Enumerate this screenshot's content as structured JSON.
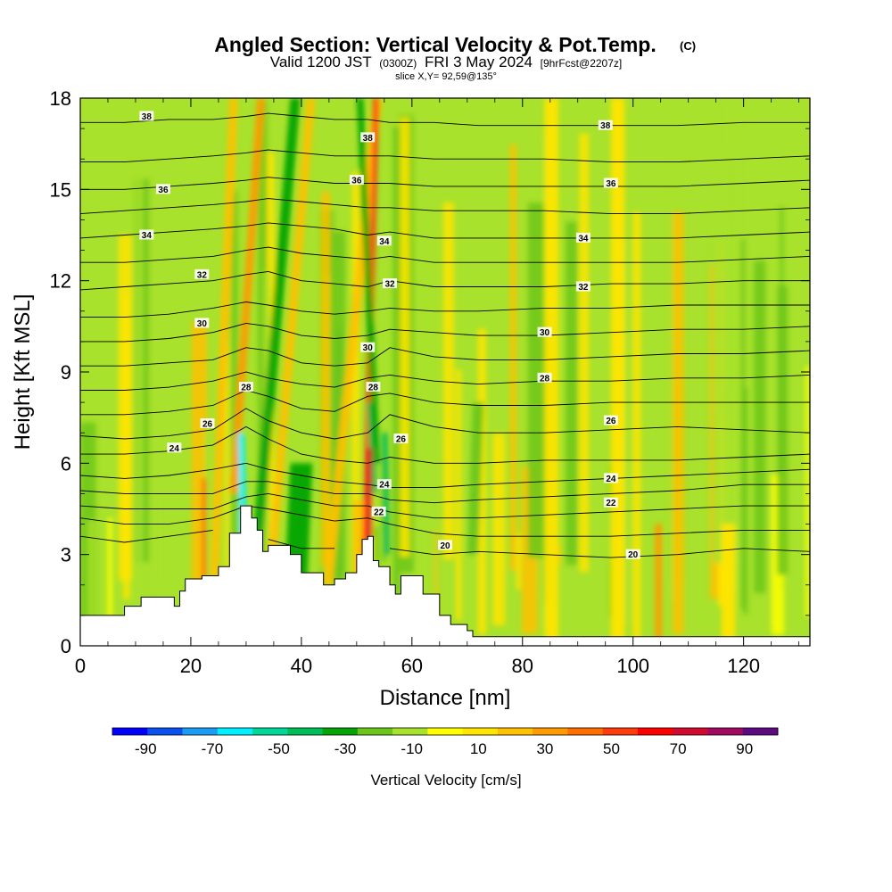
{
  "chart_data": {
    "type": "heatmap",
    "title": "Angled Section: Vertical Velocity & Pot.Temp.",
    "title_mark": "(C)",
    "subtitle": {
      "valid": "Valid 1200 JST",
      "z": "(0300Z)",
      "date": "FRI 3 May 2024",
      "fcst": "[9hrFcst@2207z]"
    },
    "slice_label": "slice X,Y= 92,59@135°",
    "xlabel": "Distance [nm]",
    "ylabel": "Height [Kft MSL]",
    "xlim": [
      0,
      132
    ],
    "ylim": [
      0,
      18
    ],
    "xticks": [
      0,
      20,
      40,
      60,
      80,
      100,
      120
    ],
    "yticks": [
      0,
      3,
      6,
      9,
      12,
      15,
      18
    ],
    "colorbar": {
      "label": "Vertical Velocity [cm/s]",
      "tick_labels": [
        "-90",
        "-70",
        "-50",
        "-30",
        "-10",
        "10",
        "30",
        "50",
        "70",
        "90"
      ],
      "range": [
        -100,
        100
      ],
      "colors": [
        "#0000ff",
        "#0a4ff0",
        "#1a9cf5",
        "#00f0ff",
        "#00d89a",
        "#00be55",
        "#06a306",
        "#6cc61a",
        "#a8e22c",
        "#ffff00",
        "#ffe500",
        "#ffc100",
        "#ff9a00",
        "#ff6e00",
        "#ff3b0a",
        "#ff0000",
        "#d10a30",
        "#a00a60",
        "#5c0a80"
      ]
    },
    "terrain": [
      [
        0,
        1
      ],
      [
        6,
        1
      ],
      [
        8,
        1.3
      ],
      [
        11,
        1.6
      ],
      [
        15,
        1.6
      ],
      [
        17,
        1.3
      ],
      [
        18,
        1.8
      ],
      [
        19,
        2.2
      ],
      [
        22,
        2.3
      ],
      [
        25,
        2.6
      ],
      [
        27,
        3.7
      ],
      [
        29,
        4.6
      ],
      [
        31,
        4.2
      ],
      [
        32,
        3.8
      ],
      [
        33,
        3.1
      ],
      [
        34,
        3.3
      ],
      [
        36,
        3.3
      ],
      [
        38,
        3.0
      ],
      [
        40,
        2.4
      ],
      [
        42,
        2.4
      ],
      [
        44,
        2.0
      ],
      [
        46,
        2.2
      ],
      [
        48,
        2.4
      ],
      [
        50,
        3.0
      ],
      [
        51,
        3.5
      ],
      [
        52,
        3.6
      ],
      [
        53,
        2.8
      ],
      [
        54,
        2.6
      ],
      [
        56,
        2.0
      ],
      [
        57,
        1.7
      ],
      [
        58,
        2.3
      ],
      [
        60,
        2.3
      ],
      [
        62,
        1.7
      ],
      [
        65,
        1.0
      ],
      [
        67,
        0.7
      ],
      [
        70,
        0.5
      ],
      [
        71,
        0.3
      ],
      [
        132,
        0.3
      ]
    ],
    "theta_contours": [
      {
        "label": "20",
        "y": [
          3.6,
          3.4,
          3.6,
          3.8,
          3.6,
          3.5,
          3.2,
          3.2,
          3.5,
          3.2,
          3.0,
          3.1,
          3.0,
          2.9,
          3.0,
          3.2,
          3.1
        ],
        "labels_at": [
          [
            66,
            3.3
          ],
          [
            100,
            3.0
          ]
        ]
      },
      {
        "label": "",
        "y": [
          4.2,
          4.0,
          4.0,
          4.2,
          4.6,
          4.5,
          4.3,
          4.1,
          4.2,
          4.0,
          3.7,
          3.6,
          3.6,
          3.6,
          3.7,
          3.8,
          3.8
        ]
      },
      {
        "label": "22",
        "y": [
          4.6,
          4.5,
          4.5,
          4.5,
          4.9,
          5.0,
          4.8,
          4.6,
          4.6,
          4.4,
          4.2,
          4.2,
          4.3,
          4.4,
          4.5,
          4.6,
          4.6
        ],
        "labels_at": [
          [
            54,
            4.4
          ],
          [
            96,
            4.7
          ]
        ]
      },
      {
        "label": "",
        "y": [
          5.1,
          5.0,
          5.0,
          5.0,
          5.4,
          5.4,
          5.2,
          5.0,
          5.0,
          4.8,
          4.7,
          4.8,
          4.9,
          5.0,
          5.1,
          5.3,
          5.3
        ]
      },
      {
        "label": "24",
        "y": [
          5.6,
          5.5,
          5.6,
          5.8,
          6.0,
          5.8,
          5.6,
          5.4,
          5.3,
          5.2,
          5.2,
          5.3,
          5.4,
          5.5,
          5.6,
          5.7,
          5.8
        ],
        "labels_at": [
          [
            55,
            5.3
          ],
          [
            96,
            5.5
          ],
          [
            17,
            6.5
          ]
        ]
      },
      {
        "label": "",
        "y": [
          6.3,
          6.3,
          6.4,
          6.6,
          7.2,
          6.8,
          6.3,
          6.1,
          6.0,
          6.2,
          6.0,
          6.0,
          6.1,
          6.1,
          6.1,
          6.2,
          6.3
        ]
      },
      {
        "label": "26",
        "y": [
          6.9,
          6.8,
          6.9,
          7.1,
          7.8,
          7.4,
          7.0,
          6.8,
          7.0,
          7.6,
          7.2,
          7.0,
          7.0,
          7.1,
          7.2,
          7.1,
          7.0
        ],
        "labels_at": [
          [
            23,
            7.3
          ],
          [
            58,
            6.8
          ],
          [
            96,
            7.4
          ]
        ]
      },
      {
        "label": "",
        "y": [
          7.6,
          7.6,
          7.7,
          7.9,
          8.4,
          8.2,
          7.8,
          7.7,
          8.2,
          8.3,
          8.0,
          7.9,
          7.9,
          8.0,
          8.0,
          8.0,
          8.0
        ]
      },
      {
        "label": "28",
        "y": [
          8.4,
          8.4,
          8.5,
          8.7,
          9.0,
          8.8,
          8.6,
          8.5,
          8.8,
          8.9,
          8.7,
          8.6,
          8.7,
          8.7,
          8.8,
          8.8,
          8.9
        ],
        "labels_at": [
          [
            30,
            8.5
          ],
          [
            53,
            8.5
          ],
          [
            84,
            8.8
          ]
        ]
      },
      {
        "label": "",
        "y": [
          9.2,
          9.2,
          9.3,
          9.4,
          9.8,
          9.7,
          9.3,
          9.2,
          9.3,
          9.8,
          9.5,
          9.4,
          9.4,
          9.5,
          9.6,
          9.6,
          9.7
        ]
      },
      {
        "label": "30",
        "y": [
          10.0,
          10.0,
          10.1,
          10.3,
          10.6,
          10.5,
          10.2,
          10.1,
          10.2,
          10.4,
          10.3,
          10.2,
          10.2,
          10.3,
          10.4,
          10.4,
          10.5
        ],
        "labels_at": [
          [
            22,
            10.6
          ],
          [
            52,
            9.8
          ],
          [
            84,
            10.3
          ]
        ]
      },
      {
        "label": "",
        "y": [
          10.8,
          10.8,
          10.9,
          11.1,
          11.3,
          11.2,
          11.0,
          10.9,
          11.0,
          11.1,
          11.0,
          11.0,
          11.1,
          11.1,
          11.2,
          11.2,
          11.2
        ]
      },
      {
        "label": "32",
        "y": [
          11.7,
          11.8,
          11.9,
          12.0,
          12.2,
          12.3,
          12.0,
          11.9,
          11.8,
          12.0,
          11.8,
          11.8,
          11.8,
          11.9,
          11.9,
          12.0,
          12.0
        ],
        "labels_at": [
          [
            22,
            12.2
          ],
          [
            56,
            11.9
          ],
          [
            91,
            11.8
          ]
        ]
      },
      {
        "label": "",
        "y": [
          12.6,
          12.6,
          12.7,
          12.8,
          13.0,
          13.1,
          12.9,
          12.8,
          12.7,
          12.8,
          12.6,
          12.6,
          12.6,
          12.6,
          12.6,
          12.7,
          12.8
        ]
      },
      {
        "label": "34",
        "y": [
          13.4,
          13.5,
          13.6,
          13.7,
          13.8,
          13.9,
          13.8,
          13.7,
          13.5,
          13.6,
          13.4,
          13.4,
          13.4,
          13.4,
          13.4,
          13.5,
          13.6
        ],
        "labels_at": [
          [
            12,
            13.5
          ],
          [
            55,
            13.3
          ],
          [
            91,
            13.4
          ]
        ]
      },
      {
        "label": "",
        "y": [
          14.2,
          14.3,
          14.4,
          14.5,
          14.6,
          14.7,
          14.6,
          14.5,
          14.4,
          14.4,
          14.3,
          14.3,
          14.3,
          14.2,
          14.2,
          14.3,
          14.4
        ]
      },
      {
        "label": "36",
        "y": [
          15.0,
          15.0,
          15.1,
          15.2,
          15.3,
          15.4,
          15.3,
          15.2,
          15.2,
          15.2,
          15.1,
          15.1,
          15.1,
          15.1,
          15.1,
          15.2,
          15.3
        ],
        "labels_at": [
          [
            15,
            15.0
          ],
          [
            50,
            15.3
          ],
          [
            96,
            15.2
          ]
        ]
      },
      {
        "label": "",
        "y": [
          15.9,
          15.9,
          16.0,
          16.1,
          16.2,
          16.3,
          16.2,
          16.1,
          16.1,
          16.1,
          16.0,
          16.0,
          16.0,
          15.9,
          15.9,
          16.0,
          16.1
        ]
      },
      {
        "label": "38",
        "y": [
          17.2,
          17.2,
          17.3,
          17.3,
          17.4,
          17.5,
          17.4,
          17.3,
          17.3,
          17.2,
          17.2,
          17.1,
          17.1,
          17.1,
          17.1,
          17.2,
          17.2
        ],
        "labels_at": [
          [
            12,
            17.4
          ],
          [
            52,
            16.7
          ],
          [
            95,
            17.1
          ]
        ]
      }
    ],
    "contour_x": [
      0,
      8,
      16,
      24,
      30,
      34,
      40,
      46,
      52,
      56,
      64,
      72,
      84,
      96,
      108,
      120,
      132
    ]
  }
}
